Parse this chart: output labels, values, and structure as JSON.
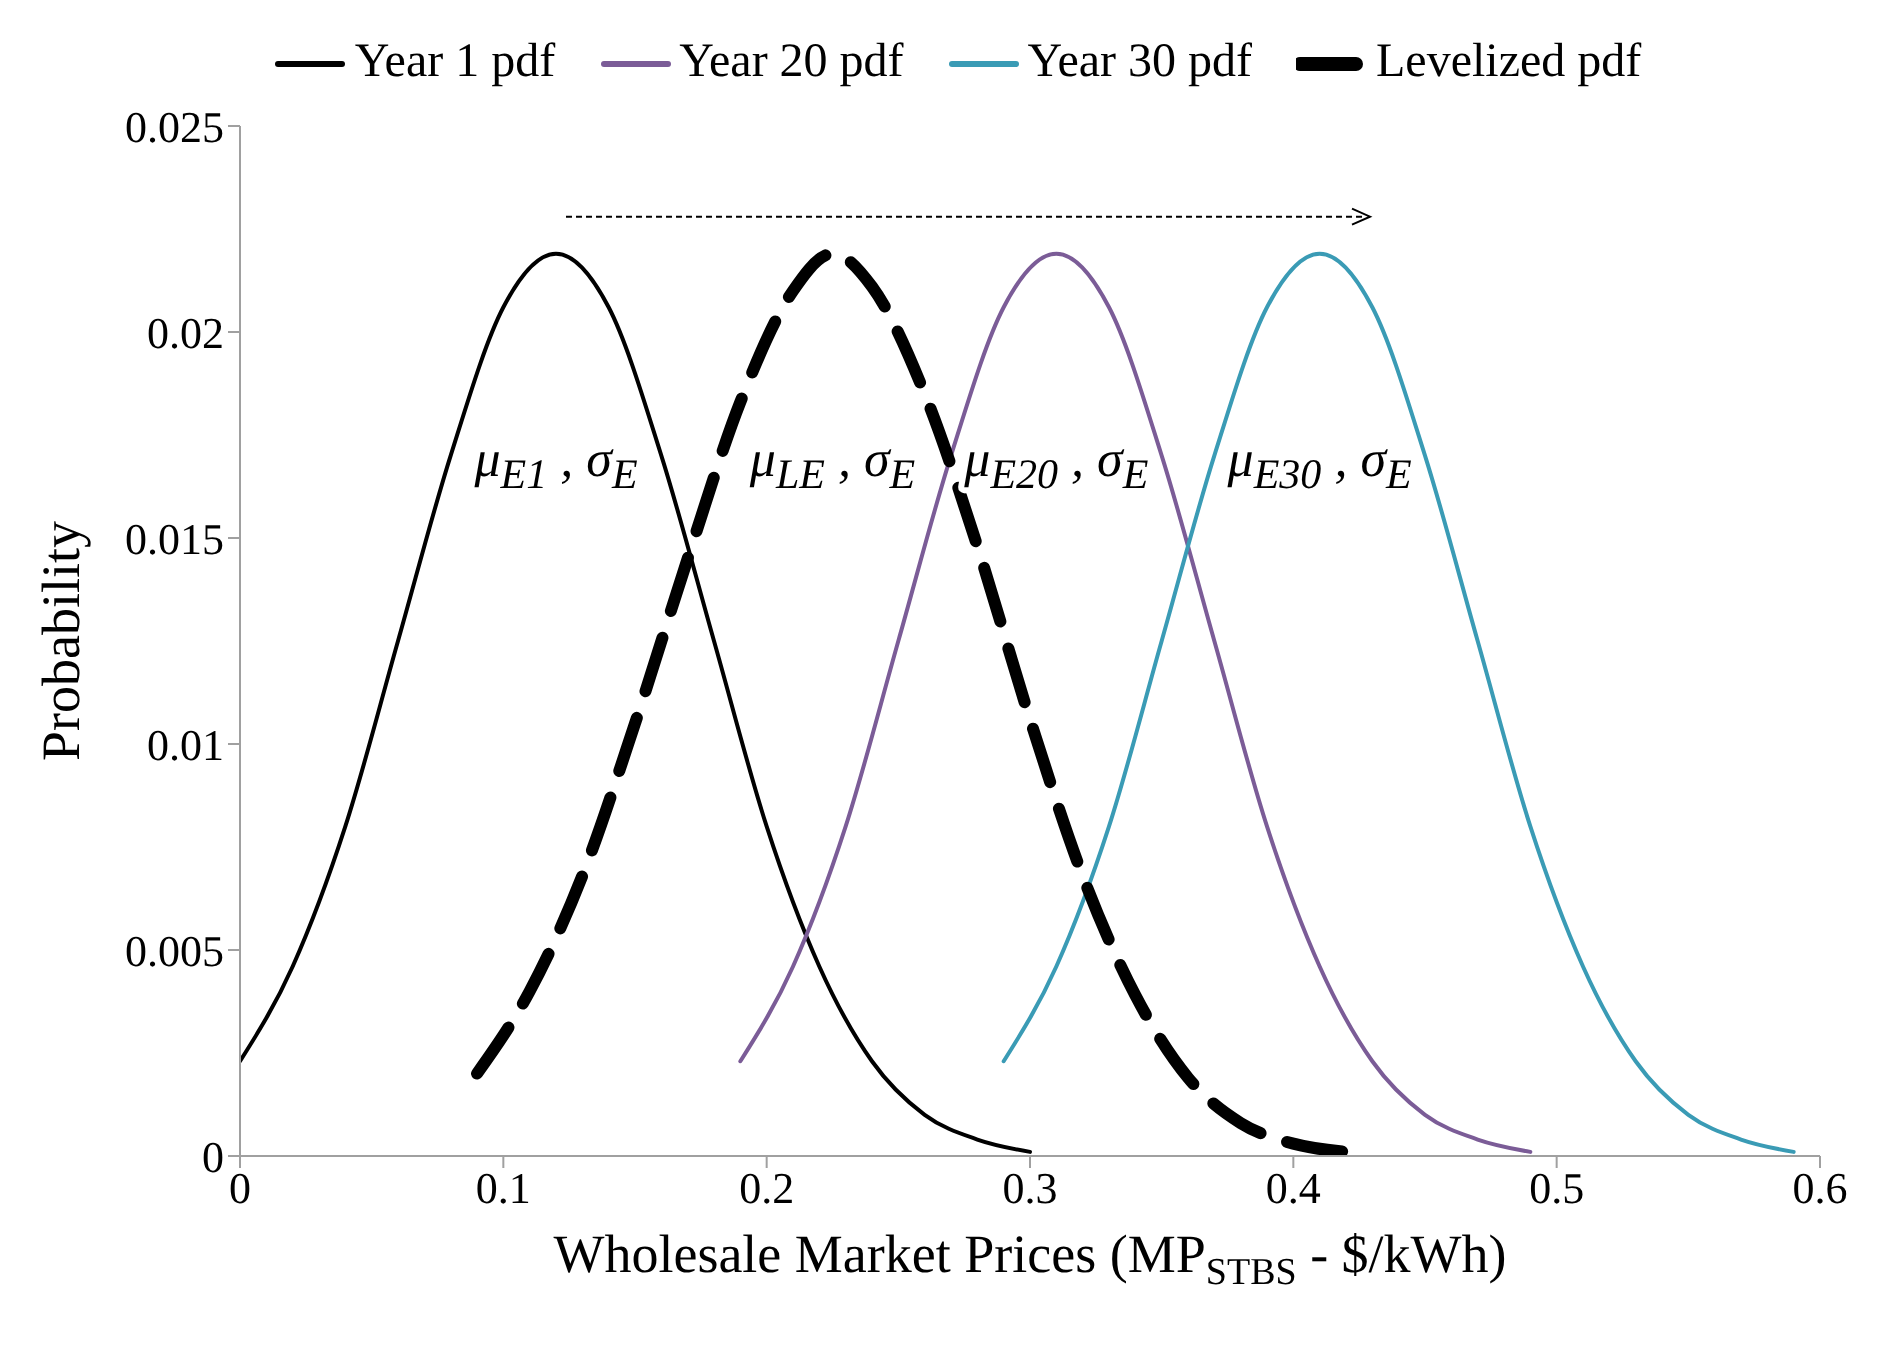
{
  "chart_data": {
    "type": "line",
    "xlabel": "Wholesale Market Prices (MP$_{STBS}$ - $/kWh)",
    "ylabel": "Probability",
    "xlim": [
      0,
      0.6
    ],
    "xticks": [
      0,
      0.1,
      0.2,
      0.3,
      0.4,
      0.5,
      0.6
    ],
    "ylim": [
      0,
      0.025
    ],
    "yticks": [
      0,
      0.005,
      0.01,
      0.015,
      0.02,
      0.025
    ],
    "legend": "top",
    "marker": "none",
    "series": [
      {
        "name": "Year 1 pdf",
        "color": "#000000",
        "line_style": "solid",
        "x": [
          0,
          0.02,
          0.04,
          0.06,
          0.08,
          0.1,
          0.12,
          0.14,
          0.16,
          0.18,
          0.2,
          0.22,
          0.24,
          0.26,
          0.28,
          0.3
        ],
        "values": [
          0.0023,
          0.0046,
          0.008,
          0.0125,
          0.017,
          0.0206,
          0.0219,
          0.0206,
          0.017,
          0.0125,
          0.008,
          0.0046,
          0.0023,
          0.001,
          0.0004,
          0.0001
        ]
      },
      {
        "name": "Year 20 pdf",
        "color": "#7b5c97",
        "line_style": "solid",
        "x": [
          0.19,
          0.21,
          0.23,
          0.25,
          0.27,
          0.29,
          0.31,
          0.33,
          0.35,
          0.37,
          0.39,
          0.41,
          0.43,
          0.45,
          0.47,
          0.49
        ],
        "values": [
          0.0023,
          0.0046,
          0.008,
          0.0125,
          0.017,
          0.0206,
          0.0219,
          0.0206,
          0.017,
          0.0125,
          0.008,
          0.0046,
          0.0023,
          0.001,
          0.0004,
          0.0001
        ]
      },
      {
        "name": "Year 30 pdf",
        "color": "#3a9bb5",
        "line_style": "solid",
        "x": [
          0.29,
          0.31,
          0.33,
          0.35,
          0.37,
          0.39,
          0.41,
          0.43,
          0.45,
          0.47,
          0.49,
          0.51,
          0.53,
          0.55,
          0.57,
          0.59
        ],
        "values": [
          0.0023,
          0.0046,
          0.008,
          0.0125,
          0.017,
          0.0206,
          0.0219,
          0.0206,
          0.017,
          0.0125,
          0.008,
          0.0046,
          0.0023,
          0.001,
          0.0004,
          0.0001
        ]
      },
      {
        "name": "Levelized pdf",
        "color": "#000000",
        "line_style": "dashed",
        "x": [
          0.09,
          0.11,
          0.13,
          0.15,
          0.17,
          0.19,
          0.21,
          0.225,
          0.24,
          0.26,
          0.28,
          0.3,
          0.32,
          0.34,
          0.36,
          0.38,
          0.4,
          0.42
        ],
        "values": [
          0.002,
          0.004,
          0.0068,
          0.0105,
          0.0145,
          0.0183,
          0.021,
          0.0219,
          0.0211,
          0.0185,
          0.0148,
          0.0106,
          0.0068,
          0.0039,
          0.0019,
          0.0008,
          0.0003,
          0.0001
        ]
      }
    ],
    "annotations": [
      "μ$_{E1}$ , σ$_{E}$",
      "μ$_{LE}$ , σ$_{E}$",
      "μ$_{E20}$ , σ$_{E}$",
      "μ$_{E30}$ , σ$_{E}$"
    ]
  }
}
